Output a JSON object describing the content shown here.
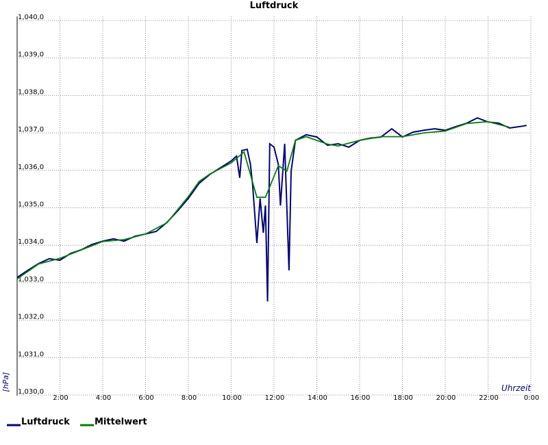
{
  "chart_data": {
    "type": "line",
    "title": "Luftdruck",
    "ylabel": "[hPa]",
    "xlabel": "Uhrzeit",
    "xlim": [
      0,
      24
    ],
    "ylim": [
      1030,
      1040
    ],
    "grid": true,
    "legend": "bottom-left",
    "xticks": [
      {
        "value": 2,
        "label": "2:00"
      },
      {
        "value": 4,
        "label": "4:00"
      },
      {
        "value": 6,
        "label": "6:00"
      },
      {
        "value": 8,
        "label": "8:00"
      },
      {
        "value": 10,
        "label": "10:00"
      },
      {
        "value": 12,
        "label": "12:00"
      },
      {
        "value": 14,
        "label": "14:00"
      },
      {
        "value": 16,
        "label": "16:00"
      },
      {
        "value": 18,
        "label": "18:00"
      },
      {
        "value": 20,
        "label": "20:00"
      },
      {
        "value": 22,
        "label": "22:00"
      },
      {
        "value": 24,
        "label": "0:00"
      }
    ],
    "yticks": [
      {
        "value": 1030,
        "label": "1,030,0"
      },
      {
        "value": 1031,
        "label": "1,031,0"
      },
      {
        "value": 1032,
        "label": "1,032,0"
      },
      {
        "value": 1033,
        "label": "1,033,0"
      },
      {
        "value": 1034,
        "label": "1,034,0"
      },
      {
        "value": 1035,
        "label": "1,035,0"
      },
      {
        "value": 1036,
        "label": "1,036,0"
      },
      {
        "value": 1037,
        "label": "1,037,0"
      },
      {
        "value": 1038,
        "label": "1,038,0"
      },
      {
        "value": 1039,
        "label": "1,039,0"
      },
      {
        "value": 1040,
        "label": "1,040,0"
      }
    ],
    "series": [
      {
        "name": "Luftdruck",
        "color": "#000080",
        "x": [
          0,
          0.5,
          1,
          1.5,
          2,
          2.5,
          3,
          3.5,
          4,
          4.5,
          5,
          5.5,
          6,
          6.5,
          7,
          7.5,
          8,
          8.5,
          9,
          9.5,
          10,
          10.25,
          10.4,
          10.5,
          10.75,
          10.9,
          11,
          11.2,
          11.35,
          11.5,
          11.6,
          11.7,
          11.8,
          12,
          12.2,
          12.3,
          12.5,
          12.7,
          12.8,
          13,
          13.5,
          14,
          14.5,
          15,
          15.5,
          16,
          16.5,
          17,
          17.5,
          18,
          18.5,
          19,
          19.5,
          20,
          20.5,
          21,
          21.5,
          22,
          22.5,
          23,
          23.5,
          23.8
        ],
        "values": [
          1033.14,
          1033.33,
          1033.51,
          1033.64,
          1033.6,
          1033.78,
          1033.88,
          1034.02,
          1034.11,
          1034.17,
          1034.11,
          1034.24,
          1034.3,
          1034.37,
          1034.61,
          1034.92,
          1035.25,
          1035.65,
          1035.89,
          1036.07,
          1036.25,
          1036.38,
          1035.8,
          1036.53,
          1036.56,
          1036.16,
          1035.61,
          1034.06,
          1035.25,
          1034.33,
          1035.06,
          1032.5,
          1036.71,
          1036.62,
          1036.16,
          1035.06,
          1036.71,
          1033.33,
          1035.98,
          1036.8,
          1036.95,
          1036.89,
          1036.67,
          1036.71,
          1036.62,
          1036.8,
          1036.86,
          1036.89,
          1037.11,
          1036.89,
          1037.02,
          1037.07,
          1037.11,
          1037.07,
          1037.17,
          1037.26,
          1037.4,
          1037.29,
          1037.26,
          1037.13,
          1037.17,
          1037.2
        ]
      },
      {
        "name": "Mittelwert",
        "color": "#008000",
        "x": [
          0,
          1,
          2,
          4,
          5,
          6,
          7,
          8,
          8.5,
          9,
          10,
          10.6,
          11.2,
          11.6,
          12.2,
          12.6,
          13,
          13.5,
          14.5,
          15,
          16,
          17,
          18,
          19,
          20,
          21,
          22,
          23
        ],
        "values": [
          1033.1,
          1033.5,
          1033.65,
          1034.1,
          1034.15,
          1034.3,
          1034.6,
          1035.3,
          1035.7,
          1035.9,
          1036.2,
          1036.49,
          1035.28,
          1035.28,
          1036.12,
          1035.98,
          1036.8,
          1036.9,
          1036.7,
          1036.65,
          1036.8,
          1036.9,
          1036.9,
          1037.0,
          1037.05,
          1037.25,
          1037.3,
          1037.15
        ]
      }
    ]
  }
}
